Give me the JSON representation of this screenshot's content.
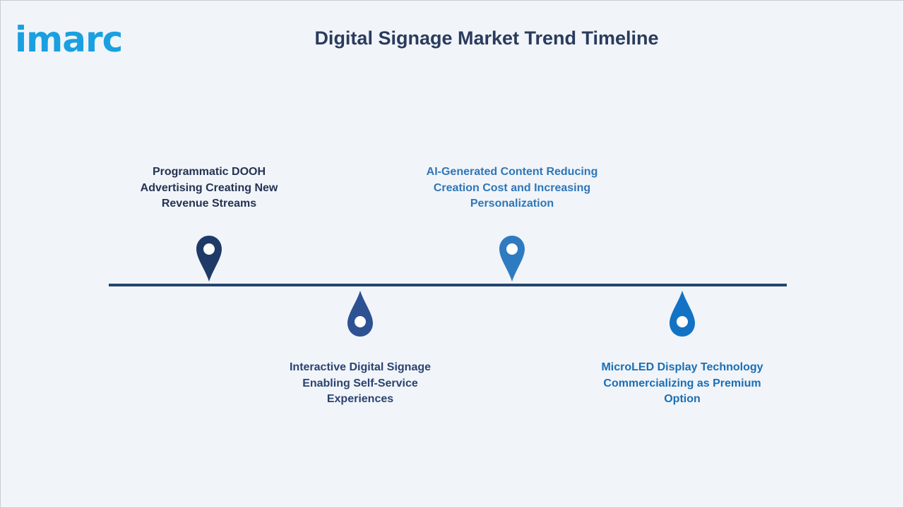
{
  "logo_text": "imarc",
  "title": "Digital Signage Market Trend Timeline",
  "colors": {
    "background": "#f1f4f9",
    "line": "#25466e",
    "logo": "#1aa0e0"
  },
  "milestones": [
    {
      "label": "Programmatic DOOH Advertising Creating New Revenue Streams",
      "position": "above",
      "pin_color": "#1f3a66",
      "text_color": "#243352"
    },
    {
      "label": "Interactive Digital Signage Enabling Self-Service Experiences",
      "position": "below",
      "pin_color": "#2d5293",
      "text_color": "#2a4470"
    },
    {
      "label": "AI-Generated Content Reducing Creation Cost and Increasing Personalization",
      "position": "above",
      "pin_color": "#2f7bc1",
      "text_color": "#2f76b8"
    },
    {
      "label": "MicroLED Display Technology Commercializing as Premium Option",
      "position": "below",
      "pin_color": "#1273c4",
      "text_color": "#1a6fb5"
    }
  ]
}
